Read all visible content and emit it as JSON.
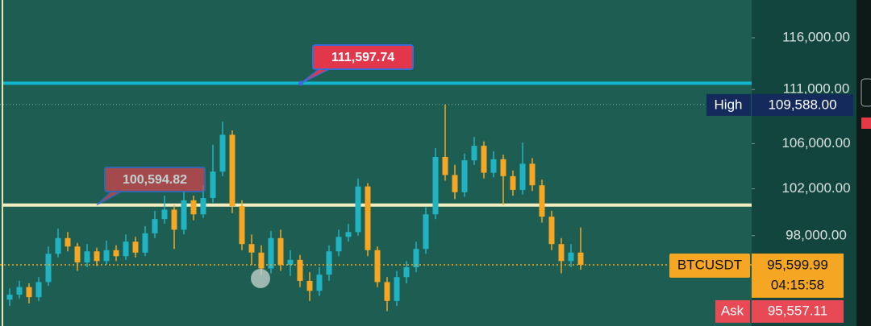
{
  "chart_data": {
    "type": "candlestick",
    "log_scale": true,
    "ylim": [
      90740,
      119800
    ],
    "yticks": [
      {
        "value": 98000,
        "label": "98,000.00"
      },
      {
        "value": 102000,
        "label": "102,000.00"
      },
      {
        "value": 106000,
        "label": "106,000.00"
      },
      {
        "value": 111000,
        "label": "111,000.00"
      },
      {
        "value": 116000,
        "label": "116,000.00"
      }
    ],
    "up_color": "#22b3c3",
    "down_color": "#f5a623",
    "candles": {
      "open": [
        92800,
        93200,
        93800,
        93000,
        94200,
        96500,
        97800,
        97100,
        95800,
        96700,
        95900,
        96800,
        96300,
        97500,
        96600,
        98200,
        99400,
        100200,
        98500,
        101000,
        99800,
        101200,
        103500,
        106800,
        100500,
        97300,
        96600,
        95300,
        97800,
        95600,
        96000,
        94300,
        93500,
        94800,
        96700,
        97900,
        98300,
        102200,
        96800,
        94200,
        92700,
        94600,
        95400,
        96900,
        99800,
        104800,
        103200,
        101700,
        104500,
        105800,
        103400,
        104600,
        103100,
        101900,
        104200,
        102300,
        99600,
        97300,
        95900,
        96600
      ],
      "high": [
        93700,
        94300,
        94100,
        94600,
        97100,
        98600,
        98300,
        97400,
        97300,
        97000,
        97600,
        97200,
        98100,
        97900,
        98800,
        100100,
        101400,
        100600,
        101800,
        101400,
        102300,
        105900,
        108000,
        107200,
        101000,
        98100,
        97200,
        98400,
        98500,
        96800,
        96400,
        95000,
        95400,
        97200,
        98500,
        99000,
        102900,
        102500,
        97100,
        94600,
        95100,
        95900,
        97500,
        100400,
        105600,
        109588,
        104100,
        105100,
        106600,
        106200,
        105300,
        105000,
        103600,
        106100,
        104700,
        102800,
        100100,
        97800,
        97300,
        98700
      ],
      "low": [
        92300,
        92900,
        92500,
        92700,
        93900,
        96200,
        96700,
        95100,
        95400,
        95500,
        95600,
        95900,
        96000,
        96200,
        96300,
        97800,
        99000,
        96900,
        98100,
        99300,
        99500,
        100800,
        103100,
        99900,
        96800,
        95600,
        94800,
        94900,
        95100,
        94700,
        93800,
        92700,
        93100,
        94300,
        96300,
        97500,
        98000,
        96300,
        93800,
        91900,
        92300,
        94100,
        95000,
        96500,
        99400,
        102700,
        101100,
        101300,
        104100,
        102900,
        103000,
        100600,
        101400,
        101500,
        101800,
        99100,
        96800,
        94900,
        95400,
        95200
      ],
      "close": [
        93200,
        93800,
        93000,
        94200,
        96500,
        97800,
        97100,
        95800,
        96700,
        95900,
        96800,
        96300,
        97500,
        96600,
        98200,
        99400,
        100200,
        98500,
        101000,
        99800,
        101200,
        103500,
        106800,
        100500,
        97300,
        96600,
        95300,
        97800,
        95600,
        96000,
        94300,
        93500,
        94800,
        96700,
        97900,
        98300,
        102200,
        96800,
        94200,
        92700,
        94600,
        95400,
        96900,
        99800,
        104800,
        103200,
        101700,
        104500,
        105800,
        103400,
        104600,
        103100,
        101900,
        104200,
        102300,
        99600,
        97300,
        95900,
        96600,
        95599.99
      ]
    },
    "lines": [
      {
        "value": 111597.74,
        "label": "111,597.74",
        "color": "#12b5cf"
      },
      {
        "value": 100594.82,
        "label": "100,594.82",
        "color": "#f3eec0"
      }
    ],
    "high": {
      "name": "High",
      "value": 109588,
      "label": "109,588.00"
    },
    "last": {
      "symbol": "BTCUSDT",
      "value": 95599.99,
      "label": "95,599.99",
      "countdown": "04:15:58"
    },
    "ask": {
      "name": "Ask",
      "value": 95557.11,
      "label": "95,557.11"
    }
  }
}
